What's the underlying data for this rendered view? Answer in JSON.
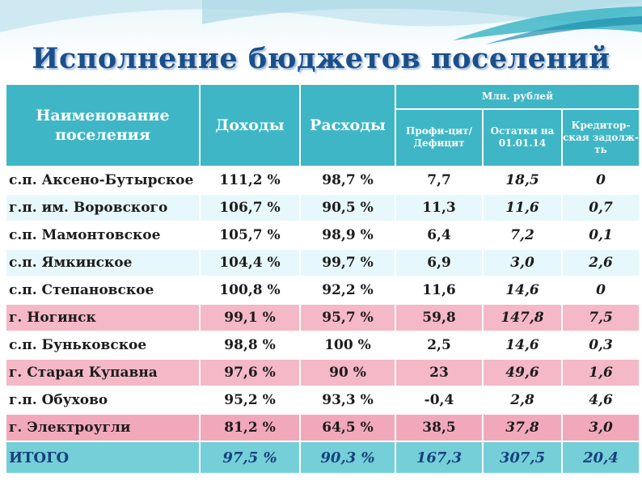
{
  "title": "Исполнение бюджетов поселений",
  "header": {
    "name": "Наименование поселения",
    "income": "Доходы",
    "expense": "Расходы",
    "unit": "Млн. рублей",
    "surplus": "Профи-цит/ Дефицит",
    "balance": "Остатки на 01.01.14",
    "debt": "Кредитор-ская задолж-ть"
  },
  "rows": [
    {
      "name": "с.п. Аксено-Бутырское",
      "income": "111,2  %",
      "expense": "98,7 %",
      "surplus": "7,7",
      "balance": "18,5",
      "debt": "0"
    },
    {
      "name": "г.п. им. Воровского",
      "income": "106,7  %",
      "expense": "90,5  %",
      "surplus": "11,3",
      "balance": "11,6",
      "debt": "0,7"
    },
    {
      "name": "с.п. Мамонтовское",
      "income": "105,7  %",
      "expense": "98,9  %",
      "surplus": "6,4",
      "balance": "7,2",
      "debt": "0,1"
    },
    {
      "name": "с.п. Ямкинское",
      "income": "104,4  %",
      "expense": "99,7  %",
      "surplus": "6,9",
      "balance": "3,0",
      "debt": "2,6"
    },
    {
      "name": "с.п. Степановское",
      "income": "100,8  %",
      "expense": "92,2  %",
      "surplus": "11,6",
      "balance": "14,6",
      "debt": "0"
    },
    {
      "name": "г. Ногинск",
      "income": "99,1  %",
      "expense": "95,7  %",
      "surplus": "59,8",
      "balance": "147,8",
      "debt": "7,5"
    },
    {
      "name": "с.п. Буньковское",
      "income": "98,8  %",
      "expense": "100  %",
      "surplus": "2,5",
      "balance": "14,6",
      "debt": "0,3"
    },
    {
      "name": "г. Старая Купавна",
      "income": "97,6 %",
      "expense": "90  %",
      "surplus": "23",
      "balance": "49,6",
      "debt": "1,6"
    },
    {
      "name": "г.п. Обухово",
      "income": "95,2 %",
      "expense": "93,3  %",
      "surplus": "-0,4",
      "balance": "2,8",
      "debt": "4,6"
    },
    {
      "name": "г. Электроугли",
      "income": "81,2  %",
      "expense": "64,5 %",
      "surplus": "38,5",
      "balance": "37,8",
      "debt": "3,0"
    }
  ],
  "total": {
    "name": "ИТОГО",
    "income": "97,5 %",
    "expense": "90,3 %",
    "surplus": "167,3",
    "balance": "307,5",
    "debt": "20,4"
  }
}
